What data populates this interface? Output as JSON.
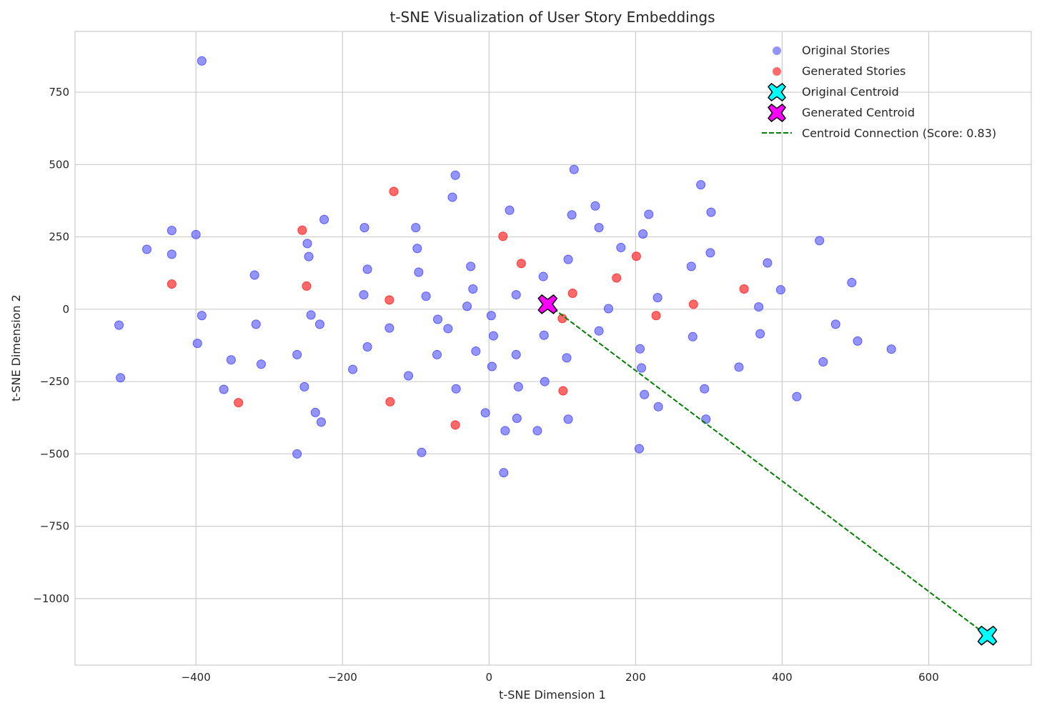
{
  "chart_data": {
    "type": "scatter",
    "title": "t-SNE Visualization of User Story Embeddings",
    "xlabel": "t-SNE Dimension 1",
    "ylabel": "t-SNE Dimension 2",
    "xlim": [
      -565,
      740
    ],
    "ylim": [
      -1230,
      960
    ],
    "xticks": [
      -400,
      -200,
      0,
      200,
      400,
      600
    ],
    "yticks": [
      -1000,
      -750,
      -500,
      -250,
      0,
      250,
      500,
      750
    ],
    "xtick_labels": [
      "−400",
      "−200",
      "0",
      "200",
      "400",
      "600"
    ],
    "ytick_labels": [
      "−1000",
      "−750",
      "−500",
      "−250",
      "0",
      "250",
      "500",
      "750"
    ],
    "grid": true,
    "legend_position": "top-right",
    "colors": {
      "original": "#4d4dff",
      "generated": "#ff2a2a",
      "original_centroid": "#00ffff",
      "generated_centroid": "#ff00ff",
      "connection": "#007f00"
    },
    "series": [
      {
        "name": "Original Stories",
        "marker": "circle",
        "points": [
          [
            -392,
            858
          ],
          [
            -505,
            -55
          ],
          [
            -503,
            -237
          ],
          [
            -467,
            207
          ],
          [
            -433,
            272
          ],
          [
            -433,
            190
          ],
          [
            -400,
            258
          ],
          [
            -398,
            -118
          ],
          [
            -392,
            -22
          ],
          [
            -352,
            -175
          ],
          [
            -362,
            -277
          ],
          [
            -320,
            118
          ],
          [
            -318,
            -52
          ],
          [
            -311,
            -190
          ],
          [
            -262,
            -157
          ],
          [
            -262,
            -500
          ],
          [
            -252,
            -268
          ],
          [
            -248,
            227
          ],
          [
            -246,
            182
          ],
          [
            -243,
            -20
          ],
          [
            -237,
            -357
          ],
          [
            -231,
            -52
          ],
          [
            -229,
            -390
          ],
          [
            -225,
            310
          ],
          [
            -186,
            -208
          ],
          [
            -171,
            50
          ],
          [
            -170,
            282
          ],
          [
            -166,
            138
          ],
          [
            -166,
            -130
          ],
          [
            -136,
            -65
          ],
          [
            -110,
            -230
          ],
          [
            -100,
            282
          ],
          [
            -98,
            210
          ],
          [
            -96,
            128
          ],
          [
            -92,
            -495
          ],
          [
            -86,
            45
          ],
          [
            -71,
            -157
          ],
          [
            -70,
            -35
          ],
          [
            -56,
            -67
          ],
          [
            -50,
            387
          ],
          [
            -46,
            463
          ],
          [
            -45,
            -275
          ],
          [
            -30,
            10
          ],
          [
            -25,
            148
          ],
          [
            -22,
            70
          ],
          [
            -18,
            -145
          ],
          [
            -5,
            -358
          ],
          [
            3,
            -22
          ],
          [
            4,
            -198
          ],
          [
            6,
            -92
          ],
          [
            20,
            -565
          ],
          [
            22,
            -420
          ],
          [
            28,
            342
          ],
          [
            37,
            -157
          ],
          [
            37,
            50
          ],
          [
            38,
            -377
          ],
          [
            40,
            -268
          ],
          [
            66,
            -420
          ],
          [
            74,
            113
          ],
          [
            75,
            -90
          ],
          [
            76,
            -250
          ],
          [
            108,
            172
          ],
          [
            106,
            -168
          ],
          [
            108,
            -380
          ],
          [
            113,
            326
          ],
          [
            116,
            483
          ],
          [
            145,
            357
          ],
          [
            150,
            282
          ],
          [
            150,
            -75
          ],
          [
            163,
            2
          ],
          [
            180,
            213
          ],
          [
            206,
            -137
          ],
          [
            208,
            -203
          ],
          [
            210,
            260
          ],
          [
            212,
            -295
          ],
          [
            218,
            328
          ],
          [
            205,
            -482
          ],
          [
            230,
            40
          ],
          [
            231,
            -337
          ],
          [
            276,
            148
          ],
          [
            278,
            -95
          ],
          [
            289,
            430
          ],
          [
            294,
            -275
          ],
          [
            296,
            -380
          ],
          [
            302,
            195
          ],
          [
            303,
            335
          ],
          [
            341,
            -200
          ],
          [
            368,
            8
          ],
          [
            370,
            -85
          ],
          [
            380,
            160
          ],
          [
            398,
            67
          ],
          [
            420,
            -302
          ],
          [
            451,
            237
          ],
          [
            456,
            -182
          ],
          [
            473,
            -52
          ],
          [
            495,
            92
          ],
          [
            503,
            -110
          ],
          [
            549,
            -138
          ]
        ]
      },
      {
        "name": "Generated Stories",
        "marker": "circle",
        "points": [
          [
            -433,
            87
          ],
          [
            -255,
            273
          ],
          [
            -249,
            80
          ],
          [
            -342,
            -323
          ],
          [
            -130,
            407
          ],
          [
            -136,
            32
          ],
          [
            -135,
            -320
          ],
          [
            -46,
            -400
          ],
          [
            19,
            252
          ],
          [
            44,
            158
          ],
          [
            100,
            -32
          ],
          [
            101,
            -282
          ],
          [
            114,
            55
          ],
          [
            174,
            108
          ],
          [
            201,
            183
          ],
          [
            228,
            -22
          ],
          [
            279,
            17
          ],
          [
            348,
            70
          ]
        ]
      }
    ],
    "centroids": [
      {
        "name": "Original Centroid",
        "x": 680,
        "y": -1128
      },
      {
        "name": "Generated Centroid",
        "x": 80,
        "y": 17
      }
    ],
    "connection": {
      "name": "Centroid Connection (Score: 0.83)",
      "style": "dashed"
    }
  }
}
